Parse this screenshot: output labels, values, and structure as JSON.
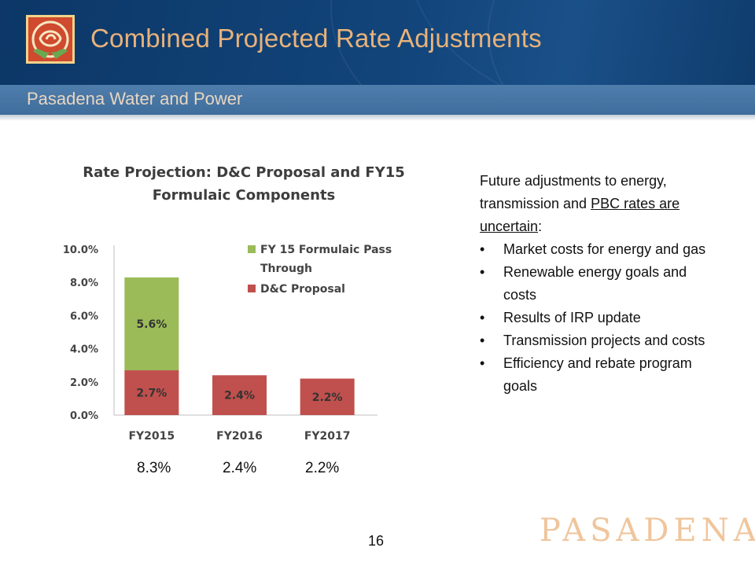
{
  "slide": {
    "title": "Combined Projected Rate Adjustments",
    "org": "Pasadena Water and Power",
    "page_number": "16",
    "brand": "PASADENA"
  },
  "chart_title": {
    "line1": "Rate Projection: D&C Proposal and FY15",
    "line2": "Formulaic Components"
  },
  "chart_data": {
    "type": "bar",
    "stacked": true,
    "categories": [
      "FY2015",
      "FY2016",
      "FY2017"
    ],
    "series": [
      {
        "name": "D&C Proposal",
        "values": [
          2.7,
          2.4,
          2.2
        ],
        "labels": [
          "2.7%",
          "2.4%",
          "2.2%"
        ],
        "color": "#c0504d"
      },
      {
        "name": "FY 15  Formulaic Pass Through",
        "values": [
          5.6,
          0,
          0
        ],
        "labels": [
          "5.6%",
          "",
          ""
        ],
        "color": "#9bbb59"
      }
    ],
    "ylim": [
      0,
      10
    ],
    "yticks": [
      "0.0%",
      "2.0%",
      "4.0%",
      "6.0%",
      "8.0%",
      "10.0%"
    ],
    "legend_position": "top-right",
    "grid": false
  },
  "totals": [
    "8.3%",
    "2.4%",
    "2.2%"
  ],
  "notes": {
    "intro_part1": "Future adjustments to energy, transmission and ",
    "intro_underlined": "PBC rates are uncertain",
    "intro_end": ":",
    "bullets": [
      "Market costs for energy and gas",
      "Renewable energy goals and costs",
      "Results of IRP update",
      "Transmission projects and costs",
      "Efficiency and rebate program goals"
    ]
  },
  "colors": {
    "header": "#0c3a6b",
    "subheader": "#4a79a8",
    "title": "#e8b27a",
    "brand": "#f0c59c"
  }
}
